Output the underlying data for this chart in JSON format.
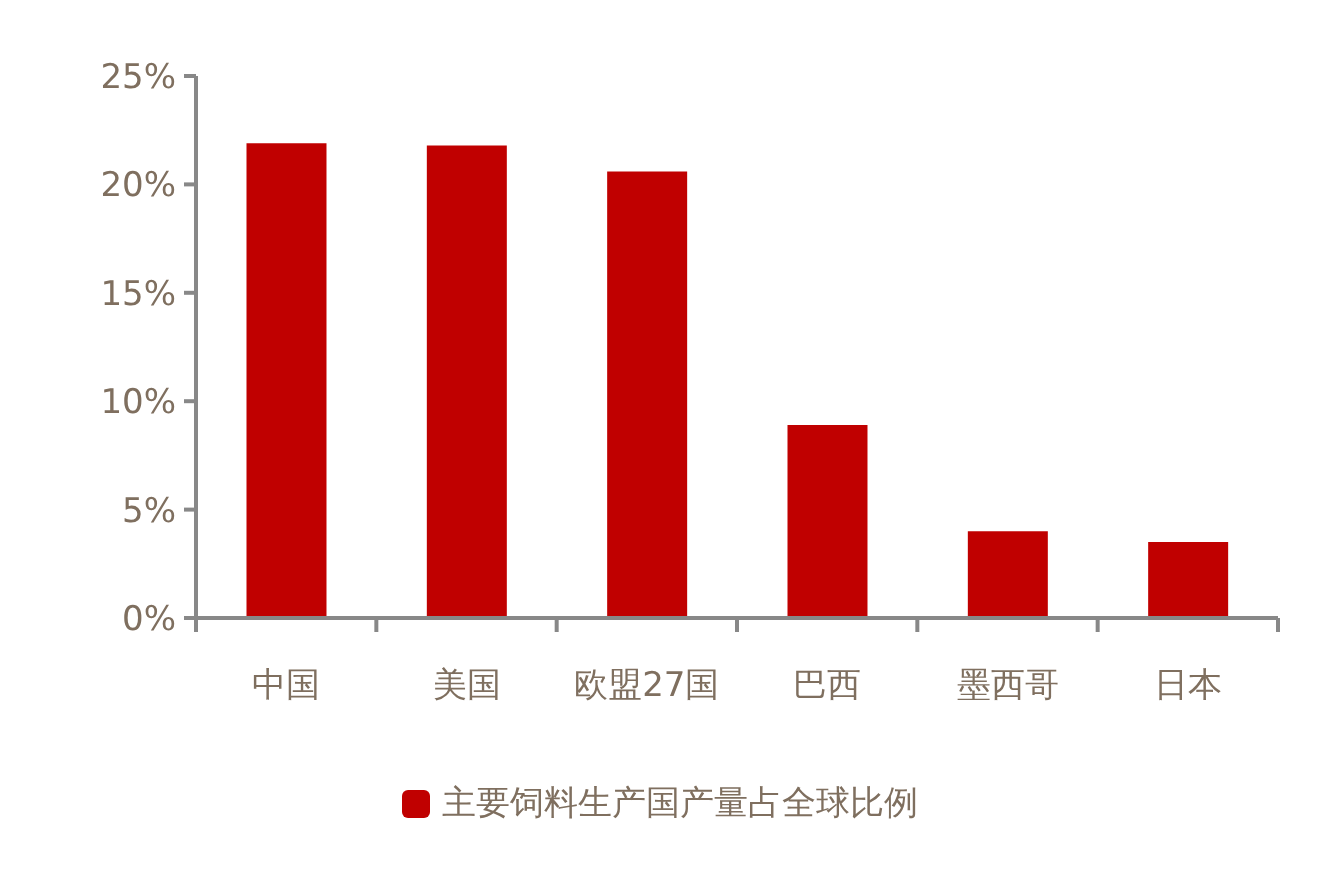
{
  "chart_data": {
    "type": "bar",
    "categories": [
      "中国",
      "美国",
      "欧盟27国",
      "巴西",
      "墨西哥",
      "日本"
    ],
    "series": [
      {
        "name": "主要饲料生产国产量占全球比例",
        "color": "#c00000",
        "values": [
          21.9,
          21.8,
          20.6,
          8.9,
          4.0,
          3.5
        ]
      }
    ],
    "ylim": [
      0,
      25
    ],
    "yticks": [
      {
        "value": 0,
        "label": "0%"
      },
      {
        "value": 5,
        "label": "5%"
      },
      {
        "value": 10,
        "label": "10%"
      },
      {
        "value": 15,
        "label": "15%"
      },
      {
        "value": 20,
        "label": "20%"
      },
      {
        "value": 25,
        "label": "25%"
      }
    ],
    "legend": "bottom"
  }
}
